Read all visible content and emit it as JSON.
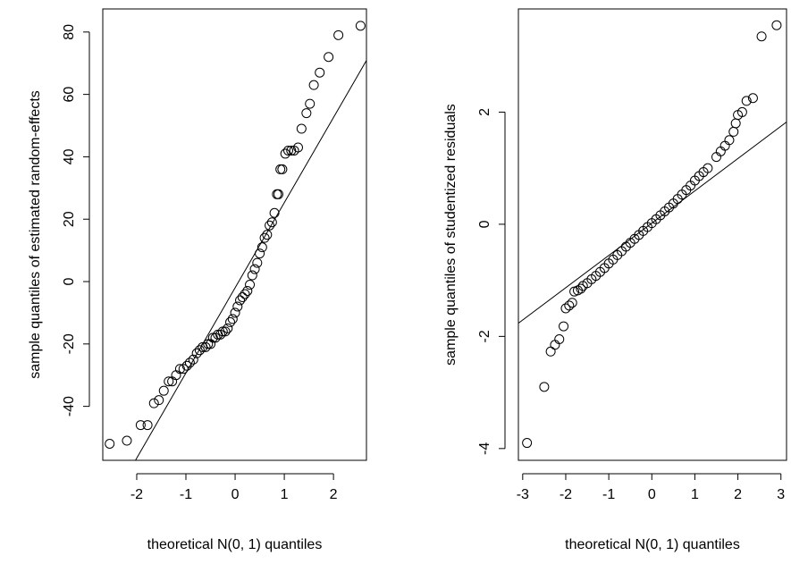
{
  "chart_data": [
    {
      "type": "scatter",
      "xlabel": "theoretical N(0, 1) quantiles",
      "ylabel": "sample quantiles of estimated random-effects",
      "xlim": [
        -2.69,
        2.67
      ],
      "ylim": [
        -57.3,
        87.4
      ],
      "xticks": [
        -2,
        -1,
        0,
        1,
        2
      ],
      "yticks": [
        -40,
        -20,
        0,
        20,
        40,
        60,
        80
      ],
      "line": {
        "intercept": -2,
        "slope": 27.3
      },
      "x": [
        -2.55,
        -2.2,
        -1.92,
        -1.78,
        -1.65,
        -1.55,
        -1.45,
        -1.35,
        -1.28,
        -1.2,
        -1.12,
        -1.05,
        -0.98,
        -0.92,
        -0.85,
        -0.78,
        -0.72,
        -0.66,
        -0.6,
        -0.55,
        -0.5,
        -0.45,
        -0.4,
        -0.35,
        -0.3,
        -0.25,
        -0.2,
        -0.15,
        -0.1,
        -0.05,
        0,
        0.05,
        0.1,
        0.15,
        0.2,
        0.25,
        0.3,
        0.35,
        0.4,
        0.45,
        0.5,
        0.55,
        0.6,
        0.65,
        0.7,
        0.75,
        0.8,
        0.85,
        0.88,
        0.92,
        0.96,
        1.02,
        1.08,
        1.14,
        1.2,
        1.28,
        1.35,
        1.45,
        1.52,
        1.6,
        1.72,
        1.9,
        2.1,
        2.55
      ],
      "values": [
        -52,
        -51,
        -46,
        -46,
        -39,
        -38,
        -35,
        -32,
        -32,
        -30,
        -28,
        -28,
        -27,
        -26,
        -25,
        -23,
        -22,
        -21,
        -21,
        -20,
        -20,
        -18,
        -18,
        -17,
        -17,
        -16,
        -16,
        -15,
        -13,
        -12,
        -10,
        -8,
        -6,
        -5,
        -4,
        -3,
        -1,
        2,
        4,
        6,
        9,
        11,
        14,
        15,
        18,
        19,
        22,
        28,
        28,
        36,
        36,
        41,
        42,
        42,
        42,
        43,
        49,
        54,
        57,
        63,
        67,
        72,
        79,
        82
      ]
    },
    {
      "type": "scatter",
      "xlabel": "theoretical N(0, 1) quantiles",
      "ylabel": "sample quantiles of studentized residuals",
      "xlim": [
        -3.1,
        3.13
      ],
      "ylim": [
        -4.21,
        3.84
      ],
      "xticks": [
        -3,
        -2,
        -1,
        0,
        1,
        2,
        3
      ],
      "yticks": [
        -4,
        -2,
        0,
        2
      ],
      "line": {
        "intercept": 0.02,
        "slope": 0.576
      },
      "x": [
        -2.9,
        -2.5,
        -2.35,
        -2.25,
        -2.15,
        -2.05,
        -2.0,
        -1.92,
        -1.85,
        -1.8,
        -1.72,
        -1.65,
        -1.6,
        -1.5,
        -1.4,
        -1.3,
        -1.2,
        -1.1,
        -1.0,
        -0.9,
        -0.8,
        -0.7,
        -0.6,
        -0.5,
        -0.4,
        -0.3,
        -0.2,
        -0.1,
        0,
        0.1,
        0.2,
        0.3,
        0.4,
        0.5,
        0.6,
        0.7,
        0.8,
        0.9,
        1.0,
        1.1,
        1.2,
        1.3,
        1.5,
        1.6,
        1.7,
        1.8,
        1.9,
        1.95,
        2.0,
        2.1,
        2.2,
        2.35,
        2.55,
        2.9
      ],
      "values": [
        -3.9,
        -2.9,
        -2.27,
        -2.15,
        -2.05,
        -1.82,
        -1.5,
        -1.45,
        -1.4,
        -1.2,
        -1.18,
        -1.15,
        -1.1,
        -1.05,
        -0.98,
        -0.92,
        -0.85,
        -0.78,
        -0.7,
        -0.63,
        -0.55,
        -0.48,
        -0.4,
        -0.33,
        -0.26,
        -0.19,
        -0.12,
        -0.05,
        0.02,
        0.09,
        0.16,
        0.23,
        0.3,
        0.37,
        0.45,
        0.53,
        0.61,
        0.69,
        0.78,
        0.86,
        0.93,
        1.0,
        1.2,
        1.3,
        1.4,
        1.5,
        1.65,
        1.8,
        1.95,
        2.0,
        2.2,
        2.25,
        3.35,
        3.55
      ]
    }
  ]
}
